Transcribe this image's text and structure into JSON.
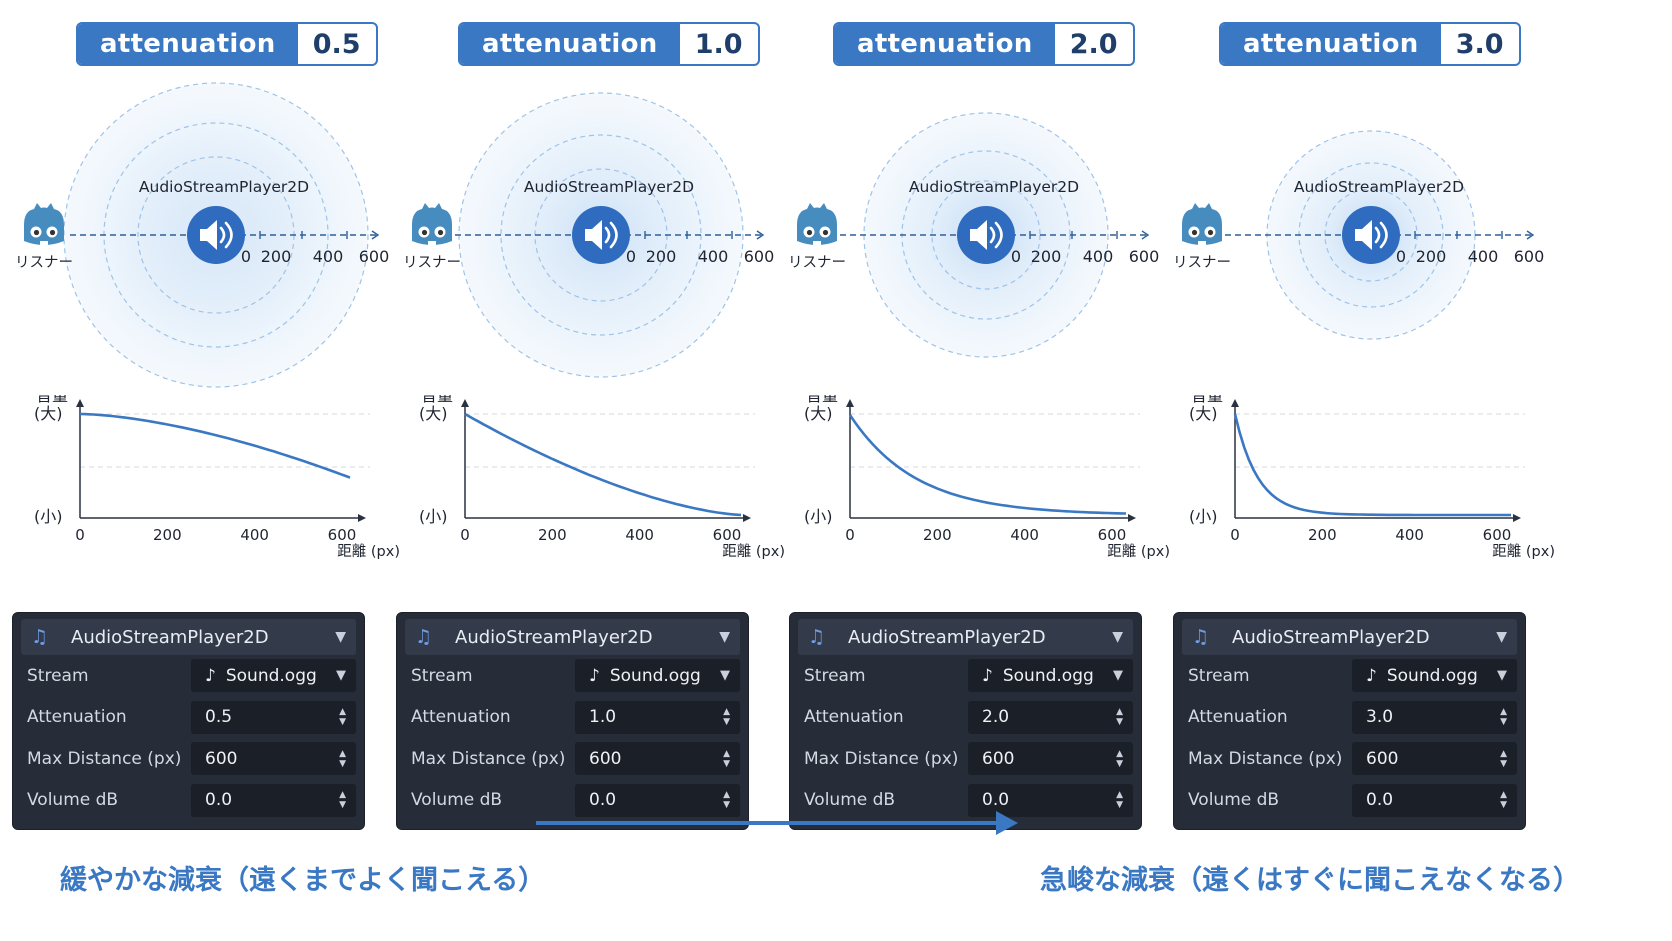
{
  "columns": [
    {
      "attenuation_label": "attenuation",
      "attenuation_value": "0.5",
      "node_label": "AudioStreamPlayer2D",
      "listener_label": "リスナー",
      "distance_ticks": [
        "0",
        "200",
        "400",
        "600"
      ],
      "graph": {
        "ylabel": "音量",
        "y_high": "(大)",
        "y_low": "(小)",
        "x_ticks": [
          "0",
          "200",
          "400",
          "600"
        ],
        "xlabel": "距離 (px)"
      },
      "panel": {
        "title": "AudioStreamPlayer2D",
        "rows": [
          {
            "label": "Stream",
            "value": "Sound.ogg"
          },
          {
            "label": "Attenuation",
            "value": "0.5"
          },
          {
            "label": "Max Distance (px)",
            "value": "600"
          },
          {
            "label": "Volume dB",
            "value": "0.0"
          }
        ]
      }
    },
    {
      "attenuation_label": "attenuation",
      "attenuation_value": "1.0",
      "node_label": "AudioStreamPlayer2D",
      "listener_label": "リスナー",
      "distance_ticks": [
        "0",
        "200",
        "400",
        "600"
      ],
      "graph": {
        "ylabel": "音量",
        "y_high": "(大)",
        "y_low": "(小)",
        "x_ticks": [
          "0",
          "200",
          "400",
          "600"
        ],
        "xlabel": "距離 (px)"
      },
      "panel": {
        "title": "AudioStreamPlayer2D",
        "rows": [
          {
            "label": "Stream",
            "value": "Sound.ogg"
          },
          {
            "label": "Attenuation",
            "value": "1.0"
          },
          {
            "label": "Max Distance (px)",
            "value": "600"
          },
          {
            "label": "Volume dB",
            "value": "0.0"
          }
        ]
      }
    },
    {
      "attenuation_label": "attenuation",
      "attenuation_value": "2.0",
      "node_label": "AudioStreamPlayer2D",
      "listener_label": "リスナー",
      "distance_ticks": [
        "0",
        "200",
        "400",
        "600"
      ],
      "graph": {
        "ylabel": "音量",
        "y_high": "(大)",
        "y_low": "(小)",
        "x_ticks": [
          "0",
          "200",
          "400",
          "600"
        ],
        "xlabel": "距離 (px)"
      },
      "panel": {
        "title": "AudioStreamPlayer2D",
        "rows": [
          {
            "label": "Stream",
            "value": "Sound.ogg"
          },
          {
            "label": "Attenuation",
            "value": "2.0"
          },
          {
            "label": "Max Distance (px)",
            "value": "600"
          },
          {
            "label": "Volume dB",
            "value": "0.0"
          }
        ]
      }
    },
    {
      "attenuation_label": "attenuation",
      "attenuation_value": "3.0",
      "node_label": "AudioStreamPlayer2D",
      "listener_label": "リスナー",
      "distance_ticks": [
        "0",
        "200",
        "400",
        "600"
      ],
      "graph": {
        "ylabel": "音量",
        "y_high": "(大)",
        "y_low": "(小)",
        "x_ticks": [
          "0",
          "200",
          "400",
          "600"
        ],
        "xlabel": "距離 (px)"
      },
      "panel": {
        "title": "AudioStreamPlayer2D",
        "rows": [
          {
            "label": "Stream",
            "value": "Sound.ogg"
          },
          {
            "label": "Attenuation",
            "value": "3.0"
          },
          {
            "label": "Max Distance (px)",
            "value": "600"
          },
          {
            "label": "Volume dB",
            "value": "0.0"
          }
        ]
      }
    }
  ],
  "captions": {
    "left": "緩やかな減衰（遠くまでよく聞こえる）",
    "right": "急峻な減衰（遠くはすぐに聞こえなくなる）"
  },
  "colors": {
    "accent": "#3a78c3",
    "panel_bg": "#262c38",
    "field_bg": "#1a1f28",
    "curve": "#3a78c3"
  },
  "icons": {
    "listener": "godot-robot-icon",
    "speaker": "speaker-icon",
    "stream": "music-note-icon"
  }
}
